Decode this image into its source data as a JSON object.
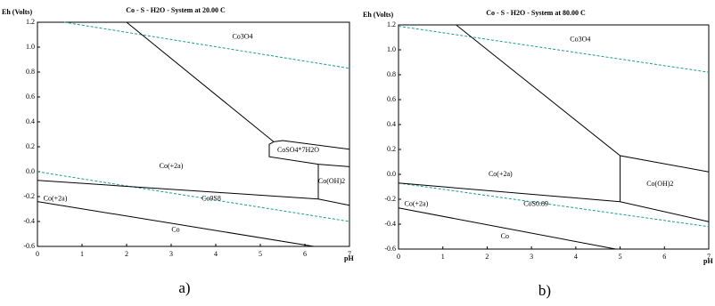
{
  "chart_data": [
    {
      "type": "line",
      "title": "Co - S - H2O - System at 20.00 C",
      "y_label": "Eh (Volts)",
      "x_label": "pH",
      "caption": "a)",
      "xlim": [
        0,
        7
      ],
      "ylim": [
        -0.6,
        1.2
      ],
      "xticks": [
        0,
        1,
        2,
        3,
        4,
        5,
        6,
        7
      ],
      "yticks": [
        -0.6,
        -0.4,
        -0.2,
        {
          "value": 0,
          "label": "0.0"
        },
        0.2,
        0.4,
        0.6,
        0.8,
        {
          "value": 1,
          "label": "1.0"
        },
        1.2
      ],
      "series": [
        {
          "color": "#1a9e8a",
          "dash": true,
          "x": [
            0.6,
            7
          ],
          "values": [
            1.2,
            0.83
          ]
        },
        {
          "color": "#1a9e8a",
          "dash": true,
          "x": [
            0,
            7
          ],
          "values": [
            0,
            -0.4
          ]
        },
        {
          "color": "#000000",
          "dash": false,
          "x": [
            2,
            5.3,
            5.5,
            7
          ],
          "values": [
            1.2,
            0.24,
            0.25,
            0.18
          ]
        },
        {
          "color": "#000000",
          "dash": false,
          "x": [
            5.3,
            5.2,
            5.2,
            6.3,
            7
          ],
          "values": [
            0.24,
            0.22,
            0.12,
            0.06,
            0.04
          ]
        },
        {
          "color": "#000000",
          "dash": false,
          "x": [
            6.3,
            6.3
          ],
          "values": [
            0.06,
            -0.22
          ]
        },
        {
          "color": "#000000",
          "dash": false,
          "x": [
            0,
            6.3,
            7
          ],
          "values": [
            -0.07,
            -0.22,
            -0.27
          ]
        },
        {
          "color": "#000000",
          "dash": false,
          "x": [
            0,
            6.2
          ],
          "values": [
            -0.24,
            -0.6
          ]
        }
      ],
      "annotations": [
        {
          "text": "Co3O4",
          "x": 4.6,
          "y": 1.08
        },
        {
          "text": "Co(+2a)",
          "x": 3.0,
          "y": 0.04
        },
        {
          "text": "CoSO4*7H2O",
          "x": 5.85,
          "y": 0.17
        },
        {
          "text": "Co(OH)2",
          "x": 6.6,
          "y": -0.08
        },
        {
          "text": "Co(+2a)",
          "x": 0.4,
          "y": -0.22
        },
        {
          "text": "Co9S8",
          "x": 3.9,
          "y": -0.22
        },
        {
          "text": "Co",
          "x": 3.1,
          "y": -0.47
        }
      ]
    },
    {
      "type": "line",
      "title": "Co - S - H2O - System at 80.00 C",
      "y_label": "Eh (Volts)",
      "x_label": "pH",
      "caption": "b)",
      "xlim": [
        0,
        7
      ],
      "ylim": [
        -0.6,
        1.2
      ],
      "xticks": [
        0,
        1,
        2,
        3,
        4,
        5,
        6,
        7
      ],
      "yticks": [
        -0.6,
        -0.4,
        -0.2,
        {
          "value": 0,
          "label": "0.0"
        },
        0.2,
        0.4,
        0.6,
        0.8,
        {
          "value": 1,
          "label": "1.0"
        },
        1.2
      ],
      "series": [
        {
          "color": "#1a9e8a",
          "dash": true,
          "x": [
            0,
            7
          ],
          "values": [
            1.19,
            0.82
          ]
        },
        {
          "color": "#1a9e8a",
          "dash": true,
          "x": [
            0,
            7
          ],
          "values": [
            -0.07,
            -0.42
          ]
        },
        {
          "color": "#000000",
          "dash": false,
          "x": [
            1.3,
            5,
            7
          ],
          "values": [
            1.2,
            0.15,
            0.02
          ]
        },
        {
          "color": "#000000",
          "dash": false,
          "x": [
            5,
            5
          ],
          "values": [
            0.15,
            -0.22
          ]
        },
        {
          "color": "#000000",
          "dash": false,
          "x": [
            0,
            5,
            7
          ],
          "values": [
            -0.07,
            -0.22,
            -0.38
          ]
        },
        {
          "color": "#000000",
          "dash": false,
          "x": [
            0,
            4.9
          ],
          "values": [
            -0.27,
            -0.6
          ]
        }
      ],
      "annotations": [
        {
          "text": "Co3O4",
          "x": 4.1,
          "y": 1.08
        },
        {
          "text": "Co(+2a)",
          "x": 2.3,
          "y": 0.0
        },
        {
          "text": "Co(OH)2",
          "x": 5.9,
          "y": -0.08
        },
        {
          "text": "Co(+2a)",
          "x": 0.4,
          "y": -0.24
        },
        {
          "text": "CoS0.89",
          "x": 3.1,
          "y": -0.24
        },
        {
          "text": "Co",
          "x": 2.4,
          "y": -0.5
        }
      ]
    }
  ]
}
